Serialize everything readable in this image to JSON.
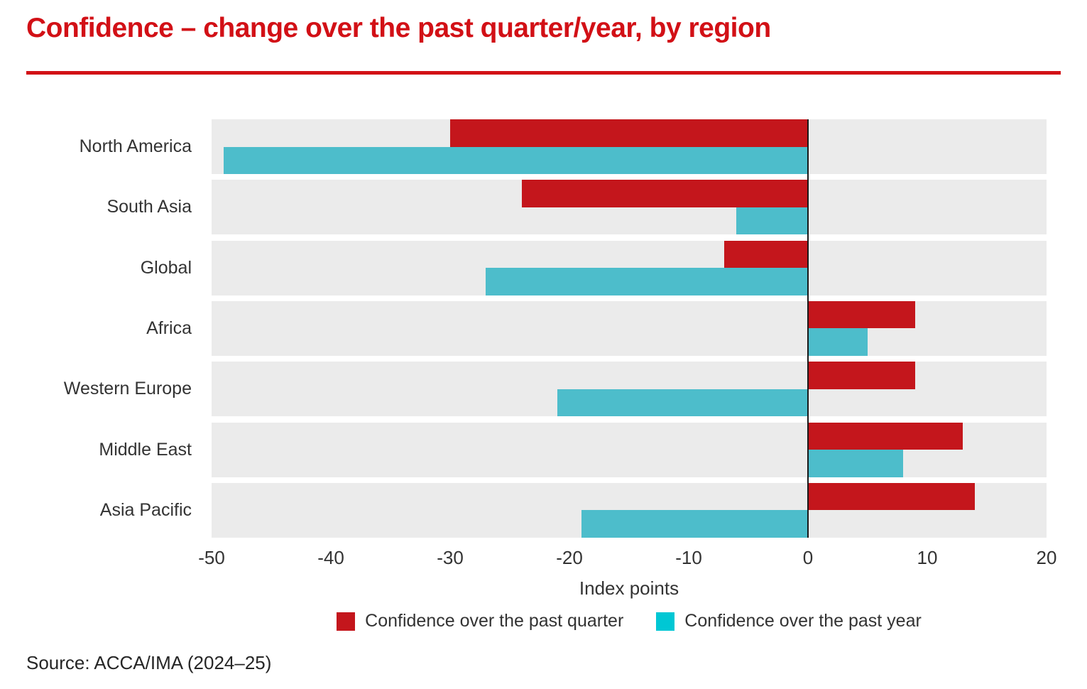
{
  "title": "Confidence – change over the past quarter/year, by region",
  "source": "Source: ACCA/IMA (2024–25)",
  "colors": {
    "title_red": "#d21016",
    "bar_quarter_red": "#c4161c",
    "bar_year_teal": "#4dbdcb",
    "legend_year_cyan": "#00c7d4",
    "band_gray": "#ebebeb",
    "axis_line": "#1a1a1a",
    "text": "#333333"
  },
  "chart_data": {
    "type": "bar",
    "orientation": "horizontal",
    "title": "Confidence – change over the past quarter/year, by region",
    "categories": [
      "North America",
      "South Asia",
      "Global",
      "Africa",
      "Western Europe",
      "Middle East",
      "Asia Pacific"
    ],
    "series": [
      {
        "name": "Confidence over the past quarter",
        "color": "#c4161c",
        "values": [
          -30,
          -24,
          -7,
          9,
          9,
          13,
          14
        ]
      },
      {
        "name": "Confidence over the past year",
        "color": "#4dbdcb",
        "values": [
          -49,
          -6,
          -27,
          5,
          -21,
          8,
          -19
        ]
      }
    ],
    "xlabel": "Index points",
    "xlim": [
      -50,
      20
    ],
    "xticks": [
      -50,
      -40,
      -30,
      -20,
      -10,
      0,
      10,
      20
    ],
    "grid": false,
    "legend_position": "bottom",
    "band_background": true
  },
  "legend": {
    "items": [
      {
        "label": "Confidence over the past quarter",
        "color": "#c4161c"
      },
      {
        "label": "Confidence over the past year",
        "color": "#00c7d4"
      }
    ]
  }
}
